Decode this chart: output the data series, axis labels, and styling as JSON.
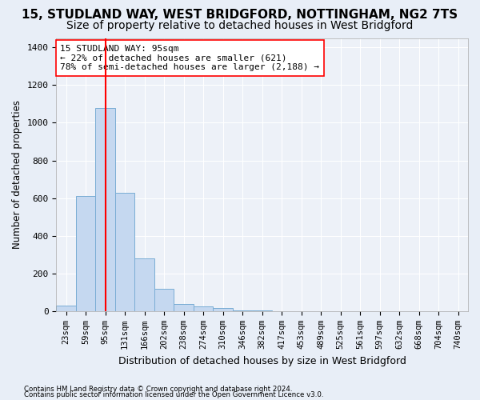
{
  "title": "15, STUDLAND WAY, WEST BRIDGFORD, NOTTINGHAM, NG2 7TS",
  "subtitle": "Size of property relative to detached houses in West Bridgford",
  "xlabel": "Distribution of detached houses by size in West Bridgford",
  "ylabel": "Number of detached properties",
  "footnote1": "Contains HM Land Registry data © Crown copyright and database right 2024.",
  "footnote2": "Contains public sector information licensed under the Open Government Licence v3.0.",
  "bin_labels": [
    "23sqm",
    "59sqm",
    "95sqm",
    "131sqm",
    "166sqm",
    "202sqm",
    "238sqm",
    "274sqm",
    "310sqm",
    "346sqm",
    "382sqm",
    "417sqm",
    "453sqm",
    "489sqm",
    "525sqm",
    "561sqm",
    "597sqm",
    "632sqm",
    "668sqm",
    "704sqm",
    "740sqm"
  ],
  "bar_values": [
    30,
    610,
    1080,
    630,
    280,
    120,
    40,
    25,
    15,
    5,
    2,
    0,
    0,
    0,
    0,
    0,
    0,
    0,
    0,
    0,
    0
  ],
  "bar_color": "#c5d8f0",
  "bar_edge_color": "#7aadd4",
  "property_line_x": 2,
  "property_line_color": "red",
  "annotation_line1": "15 STUDLAND WAY: 95sqm",
  "annotation_line2": "← 22% of detached houses are smaller (621)",
  "annotation_line3": "78% of semi-detached houses are larger (2,188) →",
  "annotation_box_color": "white",
  "annotation_box_edge": "red",
  "ylim": [
    0,
    1450
  ],
  "yticks": [
    0,
    200,
    400,
    600,
    800,
    1000,
    1200,
    1400
  ],
  "background_color": "#e8eef7",
  "plot_bg_color": "#edf1f8",
  "grid_color": "white",
  "title_fontsize": 11,
  "subtitle_fontsize": 10,
  "tick_fontsize": 7.5
}
